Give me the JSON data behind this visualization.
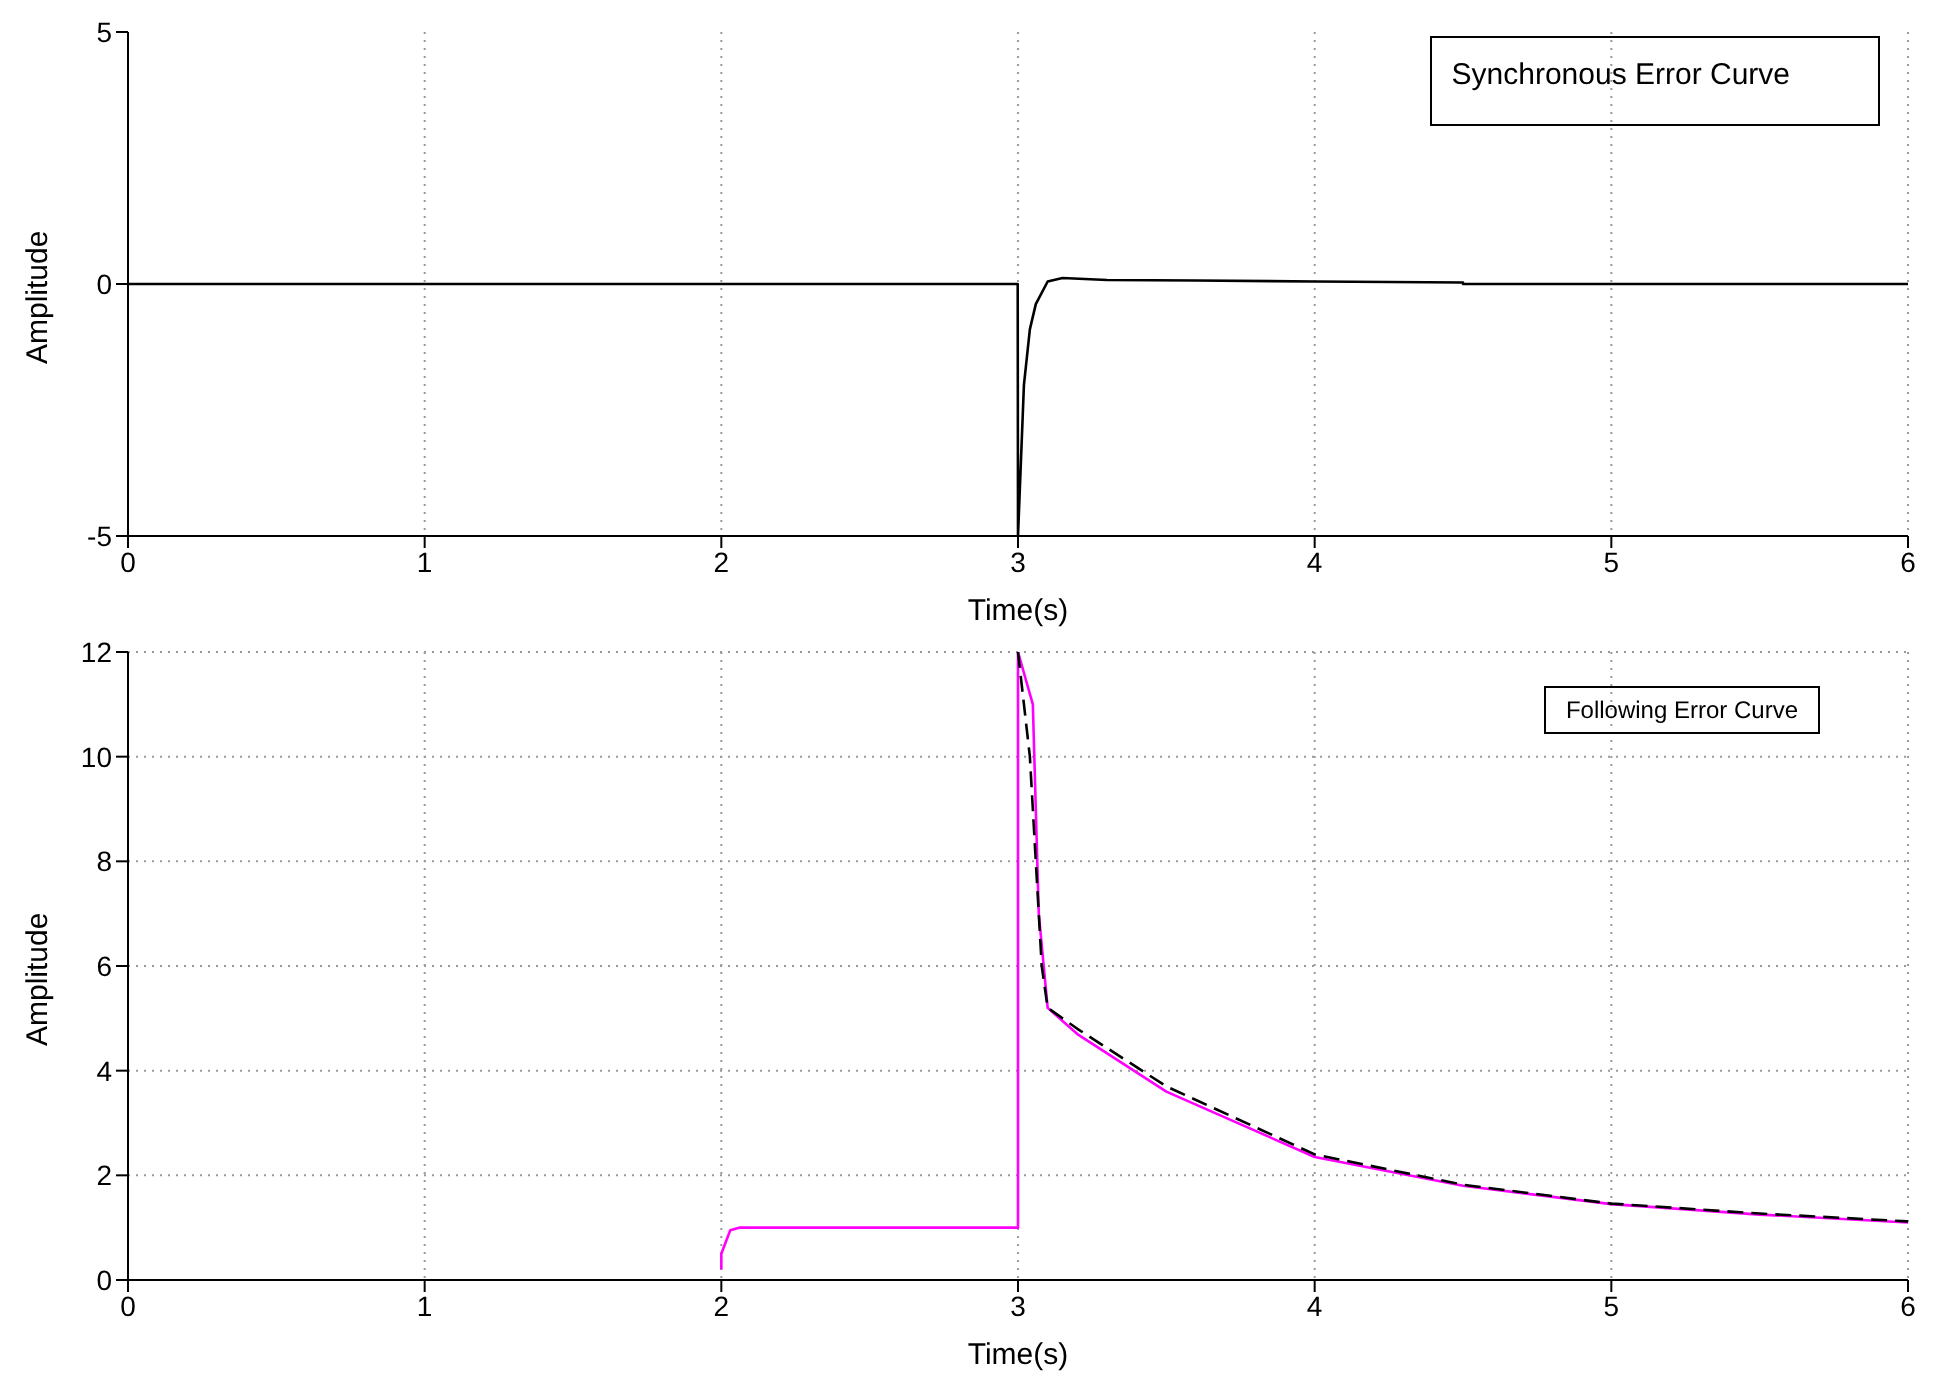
{
  "chart_data": [
    {
      "type": "line",
      "xlabel": "Time(s)",
      "ylabel": "Amplitude",
      "annotations": [
        "Synchronous Error Curve"
      ],
      "xlim": [
        0,
        6
      ],
      "xticks": [
        0,
        1,
        2,
        3,
        4,
        5,
        6
      ],
      "ylim": [
        -5,
        5
      ],
      "yticks": [
        -5,
        0,
        5
      ],
      "grid": "x",
      "series": [
        {
          "color": "#000000",
          "x": [
            0,
            2.999,
            3.0,
            3.01,
            3.02,
            3.04,
            3.06,
            3.1,
            3.15,
            3.3,
            3.6,
            4.0,
            4.5,
            4.5,
            6
          ],
          "values": [
            0,
            0,
            -5,
            -3.5,
            -2,
            -0.9,
            -0.4,
            0.05,
            0.12,
            0.08,
            0.07,
            0.05,
            0.03,
            0,
            0
          ]
        }
      ]
    },
    {
      "type": "line",
      "xlabel": "Time(s)",
      "ylabel": "Amplitude",
      "annotations": [
        "Following Error Curve"
      ],
      "xlim": [
        0,
        6
      ],
      "xticks": [
        0,
        1,
        2,
        3,
        4,
        5,
        6
      ],
      "ylim": [
        0,
        12
      ],
      "yticks": [
        0,
        2,
        4,
        6,
        8,
        10,
        12
      ],
      "grid": true,
      "series": [
        {
          "color": "#ff00ff",
          "x": [
            2.0,
            2.0,
            2.03,
            2.06,
            3.0,
            3.0,
            3.05,
            3.07,
            3.1,
            3.2,
            3.5,
            4.0,
            4.5,
            5.0,
            5.5,
            6.0
          ],
          "values": [
            0.2,
            0.5,
            0.95,
            1,
            1,
            12,
            11,
            7,
            5.2,
            4.7,
            3.6,
            2.35,
            1.8,
            1.45,
            1.25,
            1.1
          ]
        },
        {
          "color": "#000000",
          "line_style": "dashed",
          "x": [
            3.0,
            3.04,
            3.08,
            3.1,
            3.2,
            3.5,
            4.0,
            4.5,
            5.0,
            5.5,
            6.0
          ],
          "values": [
            12,
            10,
            6,
            5.2,
            4.8,
            3.7,
            2.4,
            1.82,
            1.46,
            1.27,
            1.12
          ]
        }
      ]
    }
  ]
}
